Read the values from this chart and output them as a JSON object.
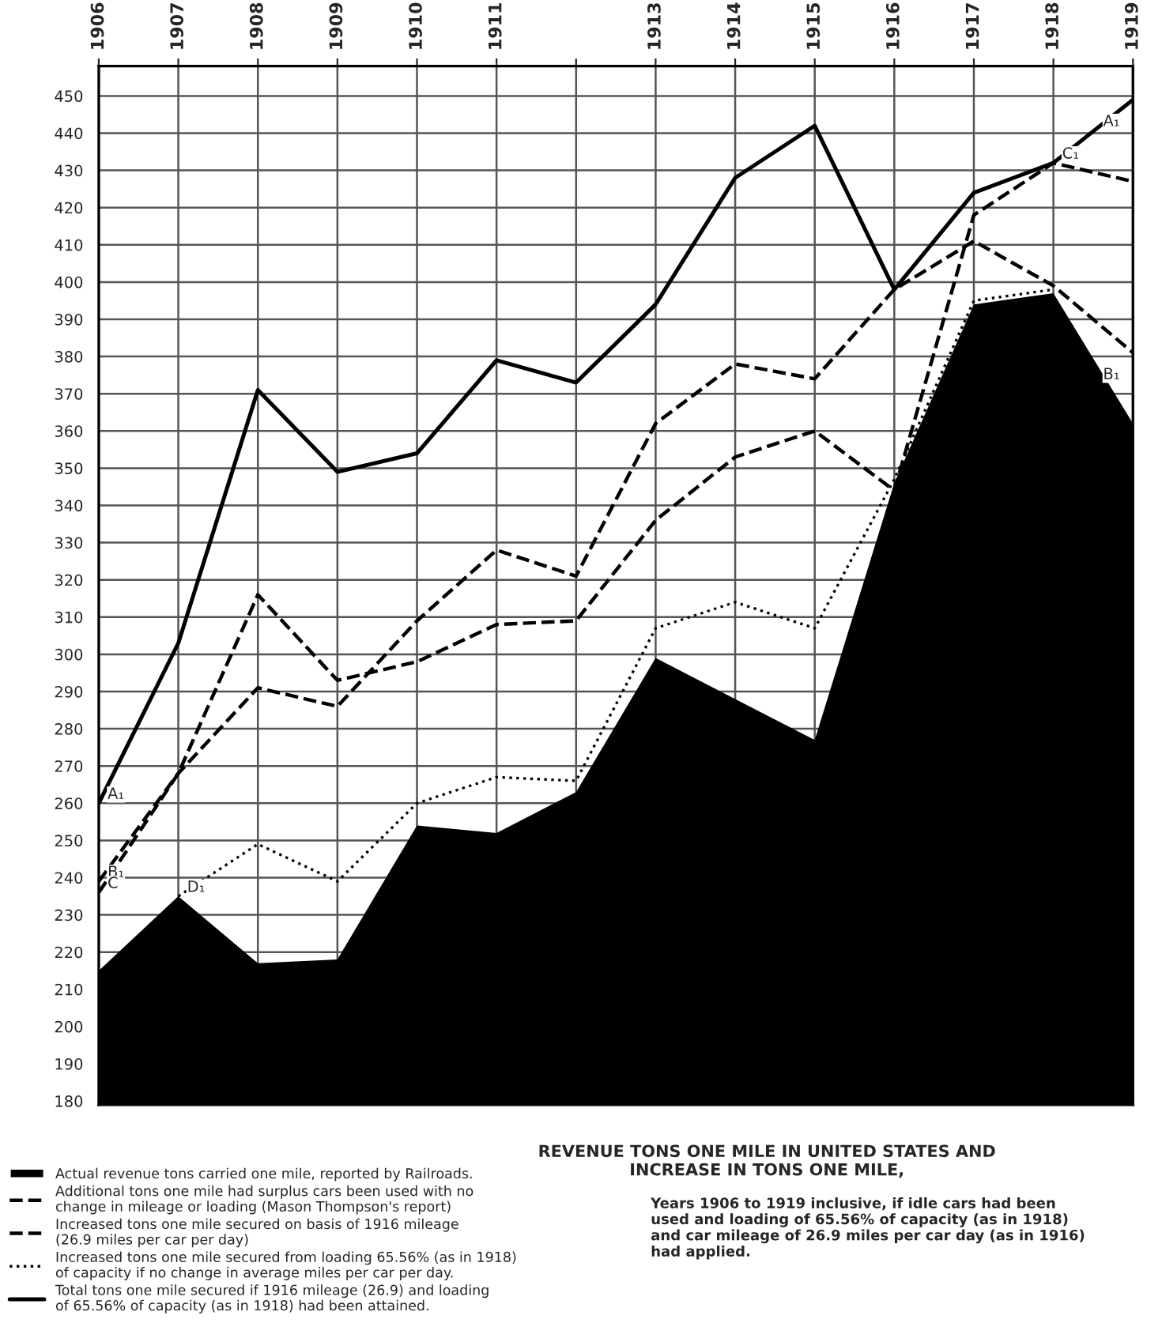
{
  "chart_data": {
    "type": "line",
    "title": "REVENUE TONS ONE MILE IN UNITED STATES AND\nINCREASE IN TONS ONE MILE,",
    "subtitle": "Years 1906 to 1919 inclusive, if idle cars had been\nused and loading of 65.56% of capacity (as in 1918)\nand car mileage of 26.9 miles per car day (as in 1916)\nhad applied.",
    "categories": [
      "1906",
      "1907",
      "1908",
      "1909",
      "1910",
      "1911",
      null,
      "1913",
      "1914",
      "1915",
      "1916",
      "1917",
      "1918",
      "1919"
    ],
    "series": [
      {
        "name": "Actual revenue tons carried one mile, reported by Railroads.",
        "type": "area",
        "color": "#000000",
        "values": [
          215,
          235,
          217,
          218,
          254,
          252,
          263,
          299,
          288,
          277,
          346,
          394,
          397,
          362
        ]
      },
      {
        "name": "Additional tons one mile had surplus cars been used with no\nchange in mileage or loading (Mason Thompson's report)",
        "color": "#000000",
        "line_style": "dashed",
        "values": [
          239,
          268,
          291,
          286,
          309,
          328,
          321,
          362,
          378,
          374,
          398,
          411,
          399,
          381
        ]
      },
      {
        "name": "Increased tons one mile secured on basis of 1916 mileage\n(26.9 miles per car per day)",
        "color": "#000000",
        "line_style": "dashed",
        "values": [
          236,
          268,
          316,
          293,
          298,
          308,
          309,
          336,
          353,
          360,
          344,
          418,
          432,
          427
        ]
      },
      {
        "name": "Increased tons one mile secured from loading 65.56% (as in 1918)\nof capacity if no change in average miles per car per day.",
        "color": "#000000",
        "line_style": "dotted",
        "values": [
          null,
          235,
          249,
          239,
          260,
          267,
          266,
          307,
          314,
          307,
          347,
          395,
          398,
          null
        ]
      },
      {
        "name": "Total tons one mile secured if 1916 mileage (26.9) and loading\nof 65.56% of capacity (as in 1918) had been attained.",
        "color": "#000000",
        "line_style": "solid",
        "values": [
          260,
          303,
          371,
          349,
          354,
          379,
          373,
          394,
          428,
          442,
          398,
          424,
          432,
          449
        ]
      }
    ],
    "annotations": [
      {
        "text": "A₁",
        "x": "1906",
        "y": 260
      },
      {
        "text": "B₁",
        "x": "1906",
        "y": 239
      },
      {
        "text": "C",
        "x": "1906",
        "y": 236
      },
      {
        "text": "D₁",
        "x": "1907",
        "y": 235
      },
      {
        "text": "A₁",
        "x": "1919",
        "y": 449
      },
      {
        "text": "C₁",
        "x": "1918",
        "y": 432
      },
      {
        "text": "B₁",
        "x": "1919",
        "y": 381
      }
    ],
    "ylim": [
      179,
      458
    ],
    "yticks": [
      180,
      190,
      200,
      210,
      220,
      230,
      240,
      250,
      260,
      270,
      280,
      290,
      300,
      310,
      320,
      330,
      340,
      350,
      360,
      370,
      380,
      390,
      400,
      410,
      420,
      430,
      440,
      450
    ],
    "grid": true,
    "legend": "bottom left"
  }
}
